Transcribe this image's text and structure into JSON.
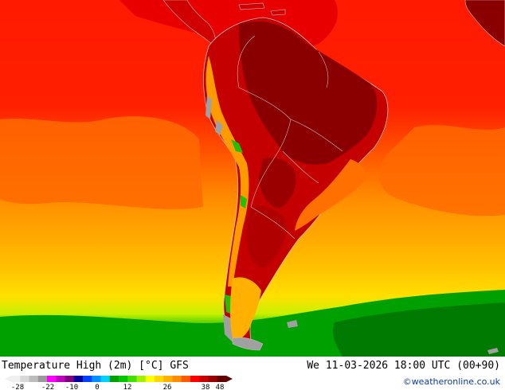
{
  "map": {
    "label_ocean_top": "",
    "colors": {
      "hot_dark": "#7a0000",
      "hot": "#a40000",
      "red": "#e40000",
      "red_orange": "#ff2a00",
      "orange": "#ff7a00",
      "amber": "#ffb000",
      "yellow": "#ffd800",
      "yellow_green": "#d6f000",
      "green_light": "#22cc00",
      "green": "#00a000",
      "green_dark": "#006400",
      "land_cold": "#a0a0a0",
      "border": "#c0c0c0"
    }
  },
  "footer": {
    "title": "Temperature High (2m) [°C] GFS",
    "datetime": "We 11-03-2026 18:00 UTC (00+90)",
    "credit": "©weatheronline.co.uk"
  },
  "legend": {
    "ticks": [
      "-28",
      "-22",
      "-10",
      "0",
      "12",
      "26",
      "38",
      "48"
    ],
    "colors": [
      "#f0f0f0",
      "#d8d8d8",
      "#bcbcbc",
      "#9a9a9a",
      "#ff00ff",
      "#c000c0",
      "#800080",
      "#0000a0",
      "#0040ff",
      "#0090ff",
      "#00d0ff",
      "#00a000",
      "#00c800",
      "#40e000",
      "#a0f000",
      "#ffff00",
      "#ffd800",
      "#ffb000",
      "#ff8c00",
      "#ff5a00",
      "#ff0000",
      "#c80000",
      "#960000",
      "#600000"
    ]
  }
}
